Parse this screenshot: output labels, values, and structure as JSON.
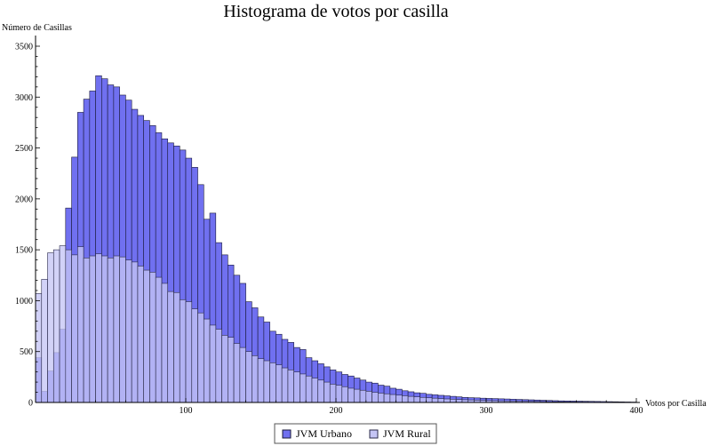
{
  "chart_data": {
    "type": "bar",
    "title": "Histograma de votos por casilla",
    "xlabel": "Votos por Casilla",
    "ylabel": "Número de Casillas",
    "xlim": [
      0,
      400
    ],
    "ylim": [
      0,
      3500
    ],
    "bin_width": 4,
    "x_ticks": [
      0,
      100,
      200,
      300,
      400
    ],
    "y_ticks": [
      0,
      500,
      1000,
      1500,
      2000,
      2500,
      3000,
      3500
    ],
    "grid": false,
    "legend_position": "bottom-center",
    "series": [
      {
        "name": "JVM Urbano",
        "color": "#7070F0",
        "edge": "#1a1a3a",
        "values": [
          440,
          110,
          310,
          490,
          720,
          1910,
          2410,
          2850,
          2980,
          3060,
          3210,
          3180,
          3120,
          3100,
          3020,
          2970,
          2880,
          2820,
          2770,
          2720,
          2650,
          2590,
          2550,
          2520,
          2480,
          2400,
          2310,
          2140,
          1800,
          1860,
          1570,
          1450,
          1350,
          1250,
          1170,
          990,
          930,
          840,
          790,
          700,
          670,
          620,
          590,
          540,
          520,
          440,
          410,
          380,
          350,
          320,
          300,
          275,
          260,
          240,
          220,
          200,
          190,
          170,
          160,
          140,
          130,
          115,
          105,
          95,
          90,
          80,
          75,
          70,
          65,
          60,
          55,
          50,
          47,
          45,
          42,
          40,
          38,
          36,
          34,
          32,
          30,
          28,
          26,
          24,
          22,
          20,
          18,
          16,
          15,
          14,
          13,
          12,
          11,
          10,
          9,
          8,
          7,
          6,
          5,
          4
        ]
      },
      {
        "name": "JVM Rural",
        "color": "#C5C5F5",
        "edge": "#2a2a4a",
        "values": [
          1070,
          1210,
          1470,
          1500,
          1540,
          1500,
          1450,
          1530,
          1420,
          1440,
          1460,
          1440,
          1420,
          1440,
          1430,
          1400,
          1380,
          1340,
          1300,
          1280,
          1230,
          1170,
          1090,
          1080,
          1010,
          990,
          920,
          880,
          820,
          760,
          720,
          660,
          640,
          580,
          540,
          500,
          460,
          430,
          410,
          390,
          370,
          340,
          320,
          300,
          280,
          260,
          240,
          220,
          200,
          180,
          170,
          155,
          140,
          130,
          120,
          110,
          100,
          92,
          85,
          78,
          72,
          66,
          60,
          55,
          50,
          46,
          42,
          38,
          35,
          32,
          29,
          27,
          25,
          23,
          21,
          19,
          18,
          16,
          15,
          14,
          13,
          12,
          11,
          10,
          9,
          8,
          7,
          6,
          5,
          5,
          4,
          4,
          3,
          3,
          2,
          2,
          2,
          1,
          1,
          1
        ]
      }
    ]
  }
}
